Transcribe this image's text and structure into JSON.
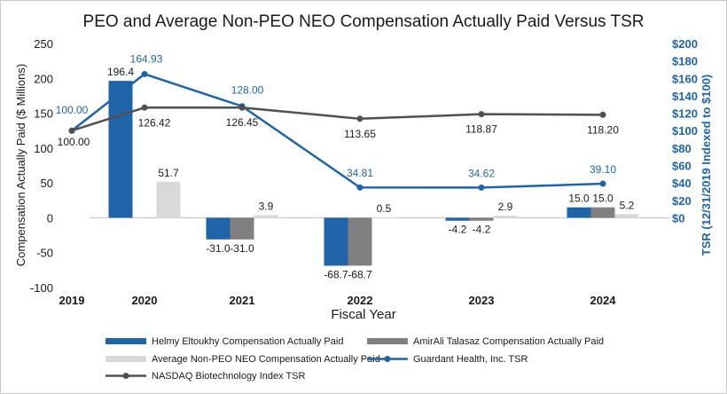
{
  "chart_data": {
    "type": "bar",
    "title": "PEO and Average Non-PEO NEO Compensation Actually Paid Versus TSR",
    "xlabel": "Fiscal Year",
    "ylabel": "Compensation Actually Paid ($ Millions)",
    "y2label": "TSR (12/31/2019 Indexed to $100)",
    "ylim": [
      -100,
      250
    ],
    "y2lim": [
      0,
      200
    ],
    "y_ticks": [
      "250",
      "200",
      "150",
      "100",
      "50",
      "0",
      "-50",
      "-100"
    ],
    "y2_ticks": [
      "$200",
      "$180",
      "$160",
      "$140",
      "$120",
      "$100",
      "$80",
      "$60",
      "$40",
      "$20",
      "$0"
    ],
    "categories": [
      "2019",
      "2020",
      "2021",
      "2022",
      "2023",
      "2024"
    ],
    "series": [
      {
        "name": "Helmy Eltoukhy Compensation Actually Paid",
        "kind": "bar",
        "color": "#1f64a8",
        "values": [
          null,
          196.4,
          -31.0,
          -68.7,
          -4.2,
          15.0
        ],
        "labels": [
          "",
          "196.4",
          "-31.0",
          "-68.7",
          "-4.2",
          "15.0"
        ]
      },
      {
        "name": "AmirAli Talasaz Compensation Actually Paid",
        "kind": "bar",
        "color": "#808080",
        "values": [
          null,
          null,
          -31.0,
          -68.7,
          -4.2,
          15.0
        ],
        "labels": [
          "",
          "",
          "-31.0",
          "-68.7",
          "-4.2",
          "15.0"
        ]
      },
      {
        "name": "Average Non-PEO NEO Compensation Actually Paid",
        "kind": "bar",
        "color": "#d9d9d9",
        "values": [
          null,
          51.7,
          3.9,
          0.5,
          2.9,
          5.2
        ],
        "labels": [
          "",
          "51.7",
          "3.9",
          "0.5",
          "2.9",
          "5.2"
        ]
      },
      {
        "name": "Guardant Health, Inc. TSR",
        "kind": "line",
        "axis": "right",
        "color": "#1f64a8",
        "values": [
          100.0,
          164.93,
          128.0,
          34.81,
          34.62,
          39.1
        ],
        "labels": [
          "100.00",
          "164.93",
          "128.00",
          "34.81",
          "34.62",
          "39.10"
        ]
      },
      {
        "name": "NASDAQ Biotechnology Index TSR",
        "kind": "line",
        "axis": "right",
        "color": "#505050",
        "values": [
          100.0,
          126.42,
          126.45,
          113.65,
          118.87,
          118.2
        ],
        "labels": [
          "100.00",
          "126.42",
          "126.45",
          "113.65",
          "118.87",
          "118.20"
        ]
      }
    ]
  }
}
